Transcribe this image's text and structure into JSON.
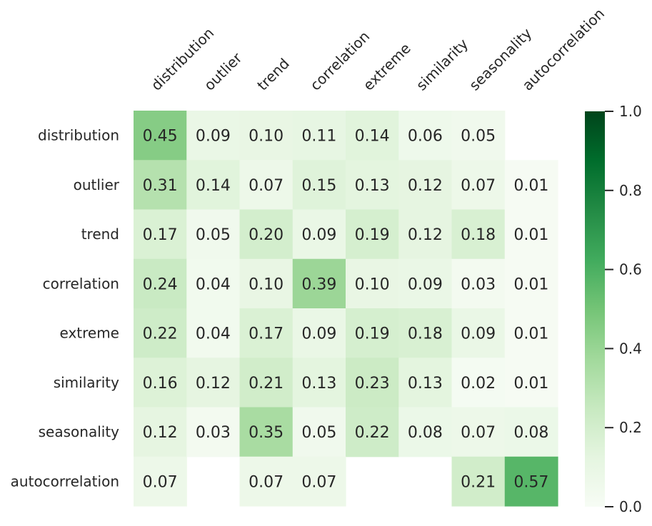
{
  "chart_data": {
    "type": "heatmap",
    "title": "",
    "xlabel": "",
    "ylabel": "",
    "x_categories": [
      "distribution",
      "outlier",
      "trend",
      "correlation",
      "extreme",
      "similarity",
      "seasonality",
      "autocorrelation"
    ],
    "y_categories": [
      "distribution",
      "outlier",
      "trend",
      "correlation",
      "extreme",
      "similarity",
      "seasonality",
      "autocorrelation"
    ],
    "values": [
      [
        0.45,
        0.09,
        0.1,
        0.11,
        0.14,
        0.06,
        0.05,
        null
      ],
      [
        0.31,
        0.14,
        0.07,
        0.15,
        0.13,
        0.12,
        0.07,
        0.01
      ],
      [
        0.17,
        0.05,
        0.2,
        0.09,
        0.19,
        0.12,
        0.18,
        0.01
      ],
      [
        0.24,
        0.04,
        0.1,
        0.39,
        0.1,
        0.09,
        0.03,
        0.01
      ],
      [
        0.22,
        0.04,
        0.17,
        0.09,
        0.19,
        0.18,
        0.09,
        0.01
      ],
      [
        0.16,
        0.12,
        0.21,
        0.13,
        0.23,
        0.13,
        0.02,
        0.01
      ],
      [
        0.12,
        0.03,
        0.35,
        0.05,
        0.22,
        0.08,
        0.07,
        0.08
      ],
      [
        0.07,
        null,
        0.07,
        0.07,
        null,
        null,
        0.21,
        0.57
      ]
    ],
    "colorbar": {
      "range": [
        0.0,
        1.0
      ],
      "ticks": [
        0.0,
        0.2,
        0.4,
        0.6,
        0.8,
        1.0
      ],
      "tick_labels": [
        "0.0",
        "0.2",
        "0.4",
        "0.6",
        "0.8",
        "1.0"
      ],
      "colormap": "Greens",
      "colors": [
        "#f7fcf5",
        "#e5f5e0",
        "#c7e9c0",
        "#a1d99b",
        "#74c476",
        "#41ab5d",
        "#238b45",
        "#006d2c",
        "#00441b"
      ]
    }
  }
}
